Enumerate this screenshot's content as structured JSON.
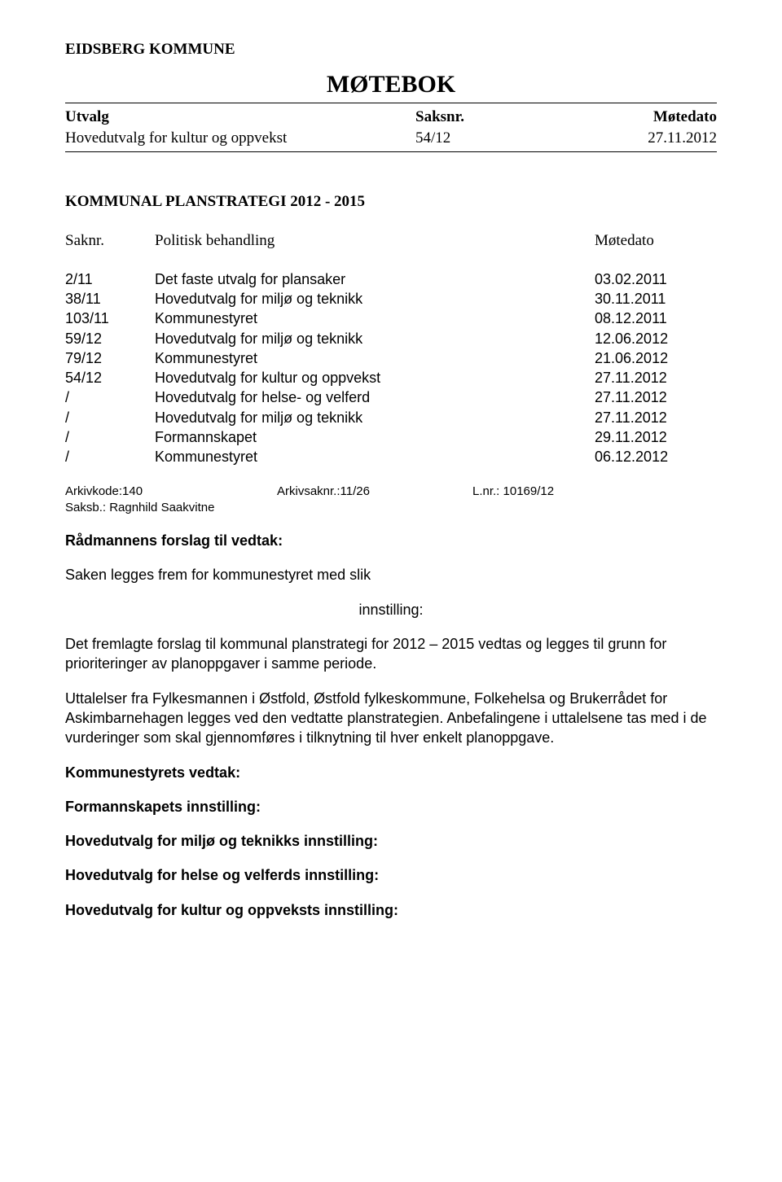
{
  "header": {
    "kommune": "EIDSBERG KOMMUNE",
    "motebok": "MØTEBOK"
  },
  "meeting_header": {
    "col_utvalg": "Utvalg",
    "col_saksnr": "Saksnr.",
    "col_motedato": "Møtedato"
  },
  "meeting_data": {
    "utvalg": "Hovedutvalg for kultur og oppvekst",
    "saksnr": "54/12",
    "motedato": "27.11.2012"
  },
  "plan_title": "KOMMUNAL PLANSTRATEGI 2012 - 2015",
  "politisk_header": {
    "a": "Saknr.",
    "b": "Politisk behandling",
    "c": "Møtedato"
  },
  "processing": [
    {
      "a": "2/11",
      "b": "Det faste utvalg for plansaker",
      "c": "03.02.2011"
    },
    {
      "a": "38/11",
      "b": "Hovedutvalg for miljø og teknikk",
      "c": "30.11.2011"
    },
    {
      "a": "103/11",
      "b": "Kommunestyret",
      "c": "08.12.2011"
    },
    {
      "a": "59/12",
      "b": "Hovedutvalg for miljø og teknikk",
      "c": "12.06.2012"
    },
    {
      "a": "79/12",
      "b": "Kommunestyret",
      "c": "21.06.2012"
    },
    {
      "a": "54/12",
      "b": "Hovedutvalg for kultur og oppvekst",
      "c": "27.11.2012"
    },
    {
      "a": "/",
      "b": "Hovedutvalg for helse- og velferd",
      "c": "27.11.2012"
    },
    {
      "a": "/",
      "b": "Hovedutvalg for miljø og teknikk",
      "c": "27.11.2012"
    },
    {
      "a": "/",
      "b": "Formannskapet",
      "c": "29.11.2012"
    },
    {
      "a": "/",
      "b": "Kommunestyret",
      "c": "06.12.2012"
    }
  ],
  "arkiv": {
    "a": "Arkivkode:140",
    "b": "Arkivsaknr.:11/26",
    "c": "L.nr.: 10169/12",
    "saksb": "Saksb.: Ragnhild Saakvitne"
  },
  "radmann_title": "Rådmannens forslag til vedtak:",
  "para1": "Saken legges frem for kommunestyret med slik",
  "innstilling": "innstilling:",
  "para2": "Det fremlagte forslag til kommunal planstrategi for 2012 – 2015 vedtas og legges til grunn for prioriteringer av planoppgaver i samme periode.",
  "para3": "Uttalelser fra Fylkesmannen i Østfold, Østfold fylkeskommune, Folkehelsa og Brukerrådet for Askimbarnehagen legges ved den vedtatte planstrategien. Anbefalingene i uttalelsene tas med i de vurderinger som skal gjennomføres i tilknytning til hver enkelt planoppgave.",
  "headings": {
    "h1": "Kommunestyrets vedtak:",
    "h2": "Formannskapets innstilling:",
    "h3": "Hovedutvalg for miljø og teknikks innstilling:",
    "h4": "Hovedutvalg for helse og velferds innstilling:",
    "h5": "Hovedutvalg for kultur og oppveksts innstilling:"
  }
}
